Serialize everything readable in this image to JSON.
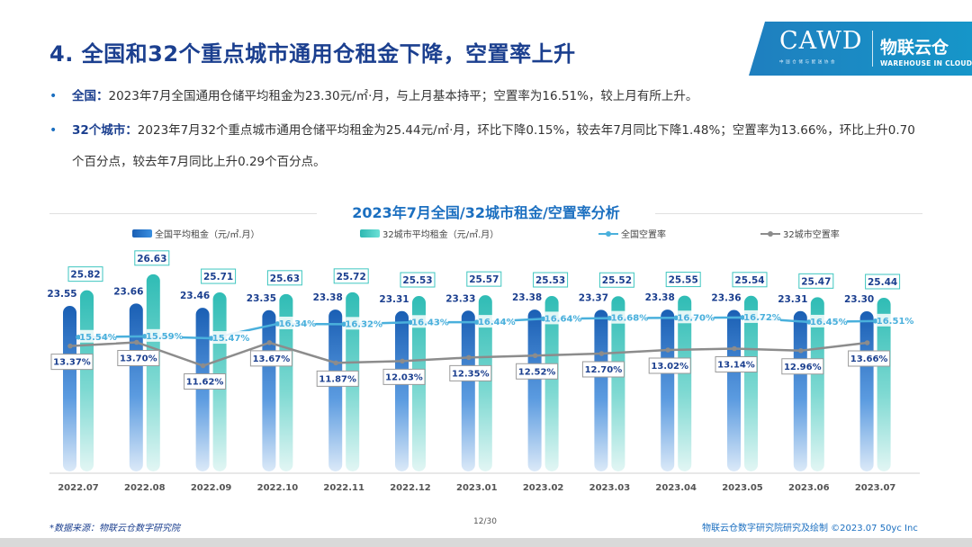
{
  "header": {
    "title": "4. 全国和32个重点城市通用仓租金下降，空置率上升"
  },
  "logo": {
    "cawd": "CAWD",
    "cawd_sub": "中 国 仓 储 与 配 送 协 会",
    "wl": "物联云仓",
    "wl_sub": "WAREHOUSE IN CLOUD"
  },
  "bullets": [
    {
      "lead": "全国：",
      "text": "2023年7月全国通用仓储平均租金为23.30元/㎡·月，与上月基本持平；空置率为16.51%，较上月有所上升。"
    },
    {
      "lead": "32个城市：",
      "text": "2023年7月32个重点城市通用仓储平均租金为25.44元/㎡·月，环比下降0.15%，较去年7月同比下降1.48%；空置率为13.66%，环比上升0.70个百分点，较去年7月同比上升0.29个百分点。"
    }
  ],
  "chart_data": {
    "type": "bar",
    "title": "2023年7月全国/32城市租金/空置率分析",
    "categories": [
      "2022.07",
      "2022.08",
      "2022.09",
      "2022.10",
      "2022.11",
      "2022.12",
      "2023.01",
      "2023.02",
      "2023.03",
      "2023.04",
      "2023.05",
      "2023.06",
      "2023.07"
    ],
    "series": [
      {
        "name": "全国平均租金（元/㎡.月）",
        "kind": "bar",
        "values": [
          23.55,
          23.66,
          23.46,
          23.35,
          23.38,
          23.31,
          23.33,
          23.38,
          23.37,
          23.38,
          23.36,
          23.31,
          23.3
        ]
      },
      {
        "name": "32城市平均租金（元/㎡.月）",
        "kind": "bar",
        "values": [
          25.82,
          26.63,
          25.71,
          25.63,
          25.72,
          25.53,
          25.57,
          25.53,
          25.52,
          25.55,
          25.54,
          25.47,
          25.44
        ]
      },
      {
        "name": "全国空置率",
        "kind": "line",
        "unit": "%",
        "values": [
          15.54,
          15.59,
          15.47,
          16.34,
          16.32,
          16.43,
          16.44,
          16.64,
          16.68,
          16.7,
          16.72,
          16.45,
          16.51
        ]
      },
      {
        "name": "32城市空置率",
        "kind": "line",
        "unit": "%",
        "values": [
          13.37,
          13.7,
          11.62,
          13.67,
          11.87,
          12.03,
          12.35,
          12.52,
          12.7,
          13.02,
          13.14,
          12.96,
          13.66
        ]
      }
    ],
    "legend_position": "top",
    "grid": false,
    "colors": {
      "national_bar": "#1f6fc5",
      "city_bar": "#3ec6c0",
      "national_line": "#4ab0dc",
      "city_line": "#8c8c8c",
      "value_label": "#1b3f8f"
    }
  },
  "footer": {
    "source": "*数据来源：物联云仓数字研究院",
    "page": "12/30",
    "credit": "物联云仓数字研究院研究及绘制     ©2023.07  50yc Inc"
  }
}
